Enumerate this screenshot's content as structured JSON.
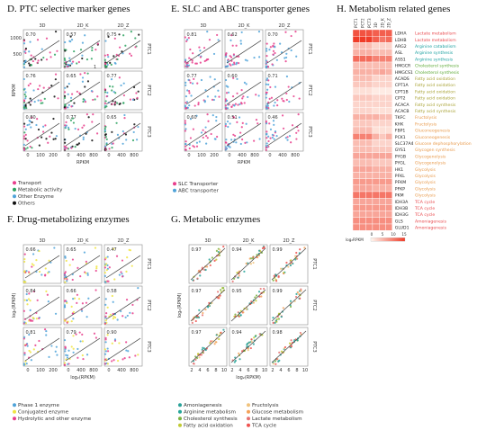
{
  "colors": {
    "frame": "#8c8c8c",
    "fit_line": "#444444",
    "panel_bg": "#ffffff"
  },
  "panelD": {
    "title": "D. PTC selective marker genes",
    "col_labels": [
      "3D",
      "2D_K",
      "2D_Z"
    ],
    "row_labels": [
      "PTC1",
      "PTC2",
      "PTC3"
    ],
    "r_values": [
      "0.70",
      "0.57",
      "0.75",
      "0.76",
      "0.65",
      "0.77",
      "0.80",
      "0.77",
      "0.65"
    ],
    "y_label": "RPKM",
    "x_label": "RPKM",
    "y_ticks": [
      "500",
      "1000"
    ],
    "x_ticks": [
      "0",
      "100",
      "200",
      "0",
      "400",
      "800",
      "0",
      "400",
      "800"
    ],
    "annotation": "1",
    "legend": [
      {
        "label": "Transport",
        "color": "#e83e8c"
      },
      {
        "label": "Metabolic activity",
        "color": "#2ca25f"
      },
      {
        "label": "Other Enzyme",
        "color": "#4fa3d9"
      },
      {
        "label": "Others",
        "color": "#111111"
      }
    ]
  },
  "panelE": {
    "title": "E. SLC and ABC transporter genes",
    "col_labels": [
      "3D",
      "2D_K",
      "2D_Z"
    ],
    "row_labels": [
      "PTC1",
      "PTC2",
      "PTC3"
    ],
    "r_values": [
      "0.81",
      "0.62",
      "0.70",
      "0.77",
      "0.60",
      "0.71",
      "0.60",
      "0.51",
      "0.46"
    ],
    "x_label": "RPKM",
    "x_ticks": [
      "0",
      "100",
      "200",
      "0",
      "400",
      "800",
      "0",
      "400",
      "800"
    ],
    "legend": [
      {
        "label": "SLC Transporter",
        "color": "#e83e8c"
      },
      {
        "label": "ABC transporter",
        "color": "#4fa3d9"
      }
    ]
  },
  "panelF": {
    "title": "F. Drug-metabolizing enzymes",
    "col_labels": [
      "3D",
      "2D_K",
      "2D_Z"
    ],
    "row_labels": [
      "PTC1",
      "PTC2",
      "PTC3"
    ],
    "r_values": [
      "0.66",
      "0.65",
      "0.47",
      "0.84",
      "0.66",
      "0.58",
      "0.81",
      "0.79",
      "0.90"
    ],
    "y_label": "log₂(RPKM)",
    "x_label": "log₂(RPKM)",
    "x_ticks": [
      "0",
      "100",
      "200",
      "0",
      "400",
      "800",
      "0",
      "400",
      "800"
    ],
    "legend": [
      {
        "label": "Phase 1 enzyme",
        "color": "#4fa3d9"
      },
      {
        "label": "Conjugated enzyme",
        "color": "#f0e442"
      },
      {
        "label": "Hydrolytic and other enzyme",
        "color": "#e83e8c"
      }
    ]
  },
  "panelG": {
    "title": "G. Metabolic enzymes",
    "col_labels": [
      "3D",
      "2D_K",
      "2D_Z"
    ],
    "row_labels": [
      "PTC1",
      "PTC2",
      "PTC3"
    ],
    "r_values": [
      "0.97",
      "0.94",
      "0.99",
      "0.97",
      "0.95",
      "0.99",
      "0.97",
      "0.94",
      "0.98"
    ],
    "y_label": "log₂(RPKM)",
    "x_label": "log₂(RPKM)",
    "x_ticks": [
      "2",
      "4",
      "6",
      "8",
      "10"
    ],
    "legend": [
      {
        "label": "Amoniagenesis",
        "color": "#2aa198"
      },
      {
        "label": "Fructolysis",
        "color": "#f0c27b"
      },
      {
        "label": "Arginine metabolism",
        "color": "#26a69a"
      },
      {
        "label": "Glucose metabolism",
        "color": "#f4a259"
      },
      {
        "label": "Cholesterol synthesis",
        "color": "#7cb342"
      },
      {
        "label": "Lactate metabolism",
        "color": "#e57373"
      },
      {
        "label": "Fatty acid oxidation",
        "color": "#c0ca33"
      },
      {
        "label": "TCA cycle",
        "color": "#ef5350"
      }
    ]
  },
  "panelH": {
    "title": "H. Metabolism related genes",
    "col_labels": [
      "PCT1",
      "PCT2",
      "PCT3",
      "3D",
      "2D_K",
      "2D_Z"
    ],
    "scale_label": "log₂RPKM",
    "scale_ticks": [
      "0",
      "5",
      "10",
      "15"
    ],
    "genes": [
      {
        "gene": "LDHA",
        "pathway": "Lactate metabolism",
        "color": "#e8474b",
        "values": [
          14,
          14,
          14,
          13,
          13,
          13
        ]
      },
      {
        "gene": "LDHB",
        "pathway": "Lactate metabolism",
        "color": "#e8474b",
        "values": [
          16,
          16,
          16,
          13,
          11,
          12
        ]
      },
      {
        "gene": "ARG2",
        "pathway": "Arginine catabolism",
        "color": "#1aa0a0",
        "values": [
          5,
          5,
          5,
          3,
          3,
          3
        ]
      },
      {
        "gene": "ASL",
        "pathway": "Arginine synthesis",
        "color": "#1aa0a0",
        "values": [
          6,
          6,
          6,
          5,
          5,
          5
        ]
      },
      {
        "gene": "ASS1",
        "pathway": "Arginine synthesis",
        "color": "#1aa0a0",
        "values": [
          12,
          12,
          12,
          10,
          10,
          10
        ]
      },
      {
        "gene": "HMGCR",
        "pathway": "Cholesterol synthesis",
        "color": "#5aa832",
        "values": [
          5,
          5,
          5,
          5,
          5,
          5
        ]
      },
      {
        "gene": "HMGCS1",
        "pathway": "Cholesterol synthesis",
        "color": "#5aa832",
        "values": [
          6,
          6,
          6,
          6,
          7,
          6
        ]
      },
      {
        "gene": "ACADS",
        "pathway": "Fatty acid oxidation",
        "color": "#a9a337",
        "values": [
          5,
          5,
          5,
          3,
          3,
          3
        ]
      },
      {
        "gene": "CPT1A",
        "pathway": "Fatty acid oxidation",
        "color": "#a9a337",
        "values": [
          4,
          4,
          4,
          3,
          3,
          3
        ]
      },
      {
        "gene": "CPT1B",
        "pathway": "Fatty acid oxidation",
        "color": "#a9a337",
        "values": [
          2,
          2,
          2,
          1,
          1,
          1
        ]
      },
      {
        "gene": "CPT2",
        "pathway": "Fatty acid oxidation",
        "color": "#a9a337",
        "values": [
          4,
          4,
          4,
          3,
          3,
          3
        ]
      },
      {
        "gene": "ACACA",
        "pathway": "Fatty acid synthesis",
        "color": "#a9a337",
        "values": [
          3,
          3,
          3,
          3,
          3,
          3
        ]
      },
      {
        "gene": "ACACB",
        "pathway": "Fatty acid synthesis",
        "color": "#a9a337",
        "values": [
          3,
          3,
          3,
          2,
          2,
          2
        ]
      },
      {
        "gene": "TKFC",
        "pathway": "Fructolysis",
        "color": "#e8994a",
        "values": [
          6,
          6,
          6,
          6,
          5,
          5
        ]
      },
      {
        "gene": "KHK",
        "pathway": "Fructolysis",
        "color": "#e8994a",
        "values": [
          4,
          4,
          4,
          3,
          3,
          3
        ]
      },
      {
        "gene": "FBP1",
        "pathway": "Gluconeogenesis",
        "color": "#e8994a",
        "values": [
          5,
          5,
          5,
          2,
          2,
          2
        ]
      },
      {
        "gene": "PCK1",
        "pathway": "Gluconeogenesis",
        "color": "#e8994a",
        "values": [
          10,
          10,
          10,
          6,
          4,
          6
        ]
      },
      {
        "gene": "SLC37A4",
        "pathway": "Glucose dephosphorylation",
        "color": "#e8994a",
        "values": [
          5,
          5,
          5,
          3,
          3,
          3
        ]
      },
      {
        "gene": "GYS1",
        "pathway": "Glycogen synthesis",
        "color": "#e8994a",
        "values": [
          5,
          5,
          5,
          4,
          4,
          4
        ]
      },
      {
        "gene": "PYGB",
        "pathway": "Glycogenolysis",
        "color": "#e8994a",
        "values": [
          7,
          7,
          7,
          7,
          7,
          7
        ]
      },
      {
        "gene": "PYGL",
        "pathway": "Glycogenolysis",
        "color": "#e8994a",
        "values": [
          5,
          5,
          5,
          4,
          4,
          4
        ]
      },
      {
        "gene": "HK1",
        "pathway": "Glycolysis",
        "color": "#e8994a",
        "values": [
          7,
          7,
          7,
          6,
          6,
          6
        ]
      },
      {
        "gene": "PFKL",
        "pathway": "Glycolysis",
        "color": "#e8994a",
        "values": [
          6,
          6,
          6,
          6,
          6,
          6
        ]
      },
      {
        "gene": "PFKM",
        "pathway": "Glycolysis",
        "color": "#e8994a",
        "values": [
          8,
          8,
          8,
          8,
          8,
          8
        ]
      },
      {
        "gene": "PFKP",
        "pathway": "Glycolysis",
        "color": "#e8994a",
        "values": [
          7,
          7,
          7,
          6,
          6,
          6
        ]
      },
      {
        "gene": "PKM",
        "pathway": "Glycolysis",
        "color": "#e8994a",
        "values": [
          11,
          11,
          11,
          11,
          11,
          11
        ]
      },
      {
        "gene": "IDH3A",
        "pathway": "TCA cycle",
        "color": "#e8474b",
        "values": [
          7,
          7,
          7,
          7,
          7,
          7
        ]
      },
      {
        "gene": "IDH3B",
        "pathway": "TCA cycle",
        "color": "#e8474b",
        "values": [
          8,
          8,
          8,
          8,
          8,
          8
        ]
      },
      {
        "gene": "IDH3G",
        "pathway": "TCA cycle",
        "color": "#e8474b",
        "values": [
          7,
          7,
          7,
          7,
          7,
          7
        ]
      },
      {
        "gene": "GLS",
        "pathway": "Amoniagenesis",
        "color": "#e8474b",
        "values": [
          9,
          9,
          9,
          9,
          9,
          9
        ]
      },
      {
        "gene": "GLUD1",
        "pathway": "Amoniagenesis",
        "color": "#e8474b",
        "values": [
          9,
          9,
          9,
          9,
          9,
          9
        ]
      }
    ]
  }
}
